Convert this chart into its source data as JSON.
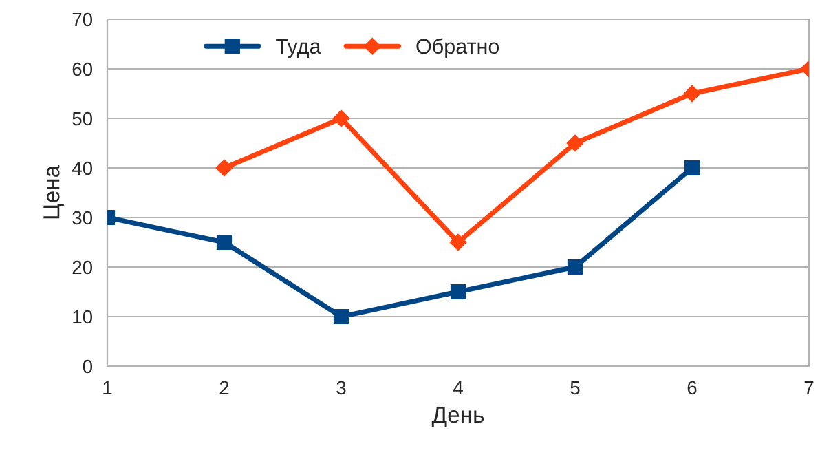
{
  "chart_data": {
    "type": "line",
    "xlabel": "День",
    "ylabel": "Цена",
    "x": [
      1,
      2,
      3,
      4,
      5,
      6,
      7
    ],
    "series": [
      {
        "name": "Туда",
        "color": "#004586",
        "marker": "square",
        "values": [
          30,
          25,
          10,
          15,
          20,
          40,
          null
        ]
      },
      {
        "name": "Обратно",
        "color": "#ff420e",
        "marker": "diamond",
        "values": [
          null,
          40,
          50,
          25,
          45,
          55,
          60
        ]
      }
    ],
    "xlim": [
      1,
      7
    ],
    "xticks": [
      1,
      2,
      3,
      4,
      5,
      6,
      7
    ],
    "ylim": [
      0,
      70
    ],
    "yticks": [
      0,
      10,
      20,
      30,
      40,
      50,
      60,
      70
    ],
    "grid": "y",
    "legend": "top",
    "line_style": "solid"
  }
}
